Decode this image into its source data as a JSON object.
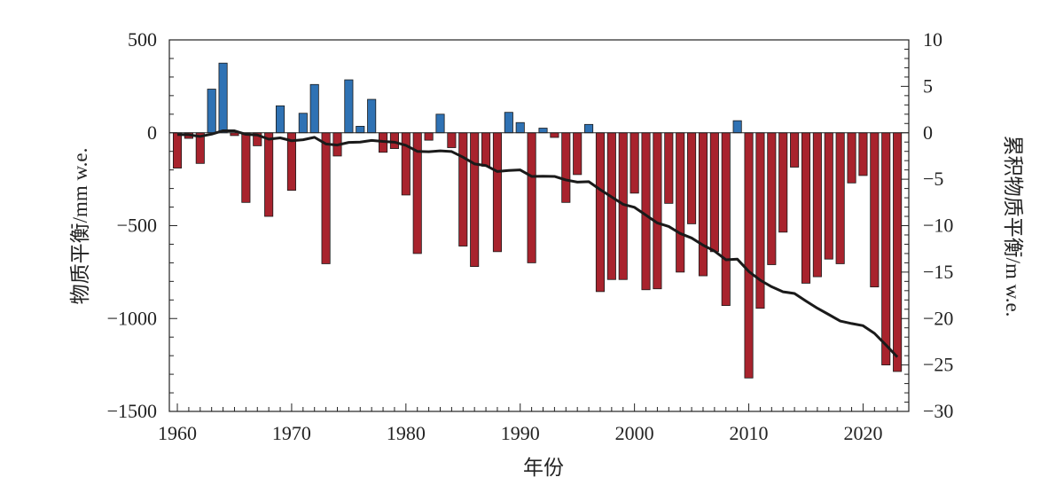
{
  "chart_data": {
    "type": "bar+line",
    "title": "",
    "xlabel": "年份",
    "ylabel_left": "物质平衡/mm w.e.",
    "ylabel_right": "累积物质平衡/m w.e.",
    "xlim": [
      1959.3,
      2024
    ],
    "ylim_left": [
      -1500,
      500
    ],
    "ylim_right": [
      -30,
      10
    ],
    "x_ticks": [
      1960,
      1970,
      1980,
      1990,
      2000,
      2010,
      2020
    ],
    "y_ticks_left": [
      500,
      0,
      -500,
      -1000,
      -1500
    ],
    "y_ticks_left_labels": [
      "500",
      "0",
      "−500",
      "−1000",
      "−1500"
    ],
    "y_ticks_right": [
      10,
      5,
      0,
      -5,
      -10,
      -15,
      -20,
      -25,
      -30
    ],
    "y_ticks_right_labels": [
      "10",
      "5",
      "0",
      "−5",
      "−10",
      "−15",
      "−20",
      "−25",
      "−30"
    ],
    "colors": {
      "positive": "#2f72b4",
      "negative": "#a8232d",
      "line": "#1a1a1a"
    },
    "series": [
      {
        "name": "物质平衡",
        "type": "bar",
        "axis": "left",
        "years": [
          1960,
          1961,
          1962,
          1963,
          1964,
          1965,
          1966,
          1967,
          1968,
          1969,
          1970,
          1971,
          1972,
          1973,
          1974,
          1975,
          1976,
          1977,
          1978,
          1979,
          1980,
          1981,
          1982,
          1983,
          1984,
          1985,
          1986,
          1987,
          1988,
          1989,
          1990,
          1991,
          1992,
          1993,
          1994,
          1995,
          1996,
          1997,
          1998,
          1999,
          2000,
          2001,
          2002,
          2003,
          2004,
          2005,
          2006,
          2007,
          2008,
          2009,
          2010,
          2011,
          2012,
          2013,
          2014,
          2015,
          2016,
          2017,
          2018,
          2019,
          2020,
          2021,
          2022,
          2023
        ],
        "values": [
          -190,
          -30,
          -165,
          235,
          375,
          -15,
          -375,
          -70,
          -450,
          145,
          -310,
          105,
          260,
          -705,
          -125,
          285,
          35,
          180,
          -105,
          -85,
          -335,
          -650,
          -40,
          100,
          -80,
          -610,
          -720,
          -180,
          -640,
          110,
          55,
          -700,
          25,
          -25,
          -375,
          -225,
          45,
          -855,
          -790,
          -790,
          -325,
          -845,
          -840,
          -380,
          -750,
          -490,
          -770,
          -640,
          -930,
          65,
          -1320,
          -945,
          -710,
          -535,
          -185,
          -810,
          -775,
          -680,
          -705,
          -270,
          -230,
          -830,
          -1250,
          -1285
        ]
      },
      {
        "name": "累积物质平衡",
        "type": "line",
        "axis": "right",
        "years": [
          1960,
          1961,
          1962,
          1963,
          1964,
          1965,
          1966,
          1967,
          1968,
          1969,
          1970,
          1971,
          1972,
          1973,
          1974,
          1975,
          1976,
          1977,
          1978,
          1979,
          1980,
          1981,
          1982,
          1983,
          1984,
          1985,
          1986,
          1987,
          1988,
          1989,
          1990,
          1991,
          1992,
          1993,
          1994,
          1995,
          1996,
          1997,
          1998,
          1999,
          2000,
          2001,
          2002,
          2003,
          2004,
          2005,
          2006,
          2007,
          2008,
          2009,
          2010,
          2011,
          2012,
          2013,
          2014,
          2015,
          2016,
          2017,
          2018,
          2019,
          2020,
          2021,
          2022,
          2023
        ],
        "values": [
          -0.19,
          -0.22,
          -0.39,
          -0.15,
          0.22,
          0.21,
          -0.17,
          -0.24,
          -0.69,
          -0.55,
          -0.86,
          -0.75,
          -0.49,
          -1.2,
          -1.32,
          -1.04,
          -1.0,
          -0.82,
          -0.93,
          -1.01,
          -1.35,
          -2.0,
          -2.04,
          -1.94,
          -2.02,
          -2.63,
          -3.35,
          -3.53,
          -4.17,
          -4.06,
          -4.0,
          -4.7,
          -4.68,
          -4.7,
          -5.08,
          -5.31,
          -5.26,
          -6.12,
          -6.91,
          -7.7,
          -8.03,
          -8.87,
          -9.71,
          -10.09,
          -10.84,
          -11.33,
          -12.1,
          -12.74,
          -13.67,
          -13.61,
          -14.93,
          -15.87,
          -16.58,
          -17.12,
          -17.3,
          -18.11,
          -18.89,
          -19.57,
          -20.27,
          -20.54,
          -20.77,
          -21.6,
          -22.85,
          -24.14
        ]
      }
    ]
  }
}
